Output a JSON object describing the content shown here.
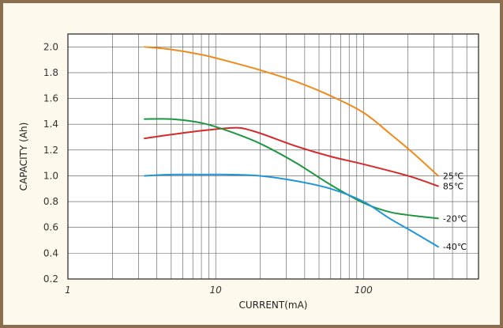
{
  "chart_data": {
    "type": "line",
    "xscale": "log",
    "xlabel": "CURRENT(mA)",
    "ylabel": "CAPACITY (Ah)",
    "xlim": [
      1,
      600
    ],
    "ylim": [
      0.2,
      2.1
    ],
    "xticks": [
      "1",
      "10",
      "100"
    ],
    "yticks": [
      "0.2",
      "0.4",
      "0.6",
      "0.8",
      "1.0",
      "1.2",
      "1.4",
      "1.6",
      "1.8",
      "2.0"
    ],
    "grid": true,
    "series": [
      {
        "name": "25℃",
        "color": "#f08a1c",
        "x": [
          3.3,
          5,
          8,
          12,
          20,
          35,
          60,
          100,
          150,
          220,
          320
        ],
        "y": [
          2.0,
          1.98,
          1.94,
          1.89,
          1.82,
          1.73,
          1.62,
          1.49,
          1.33,
          1.17,
          1.0
        ]
      },
      {
        "name": "85℃",
        "color": "#d42a2a",
        "x": [
          3.3,
          5,
          8,
          12,
          15,
          20,
          35,
          60,
          100,
          200,
          320
        ],
        "y": [
          1.29,
          1.32,
          1.35,
          1.37,
          1.37,
          1.33,
          1.23,
          1.15,
          1.09,
          1.0,
          0.92
        ]
      },
      {
        "name": "-20℃",
        "color": "#1e9640",
        "x": [
          3.3,
          5,
          8,
          12,
          20,
          35,
          60,
          100,
          150,
          220,
          320
        ],
        "y": [
          1.44,
          1.44,
          1.41,
          1.35,
          1.25,
          1.1,
          0.93,
          0.79,
          0.72,
          0.69,
          0.67
        ]
      },
      {
        "name": "-40℃",
        "color": "#2096d8",
        "x": [
          3.3,
          5,
          8,
          12,
          20,
          35,
          60,
          100,
          150,
          220,
          320
        ],
        "y": [
          1.0,
          1.01,
          1.01,
          1.01,
          1.0,
          0.96,
          0.9,
          0.8,
          0.67,
          0.56,
          0.45
        ]
      }
    ]
  }
}
